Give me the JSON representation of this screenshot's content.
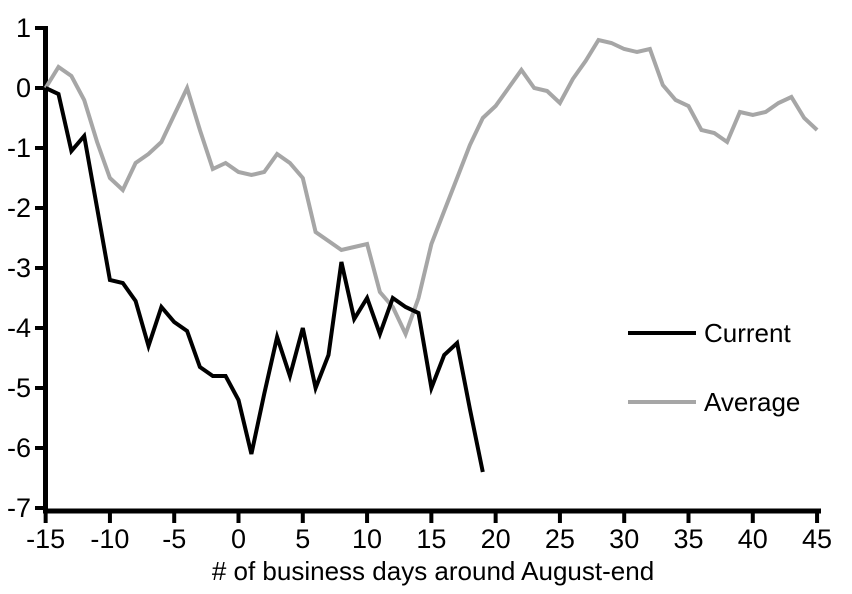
{
  "chart_data": {
    "type": "line",
    "title": "",
    "xlabel": "# of business days around August-end",
    "ylabel": "",
    "xlim": [
      -15,
      45
    ],
    "ylim": [
      -7,
      1
    ],
    "x_ticks": [
      -15,
      -10,
      -5,
      0,
      5,
      10,
      15,
      20,
      25,
      30,
      35,
      40,
      45
    ],
    "y_ticks": [
      1,
      0,
      -1,
      -2,
      -3,
      -4,
      -5,
      -6,
      -7
    ],
    "grid": false,
    "legend_position": "right-middle",
    "series": [
      {
        "name": "Current",
        "color": "#000000",
        "x": [
          -15,
          -14,
          -13,
          -12,
          -11,
          -10,
          -9,
          -8,
          -7,
          -6,
          -5,
          -4,
          -3,
          -2,
          -1,
          0,
          1,
          2,
          3,
          4,
          5,
          6,
          7,
          8,
          9,
          10,
          11,
          12,
          13,
          14,
          15,
          16,
          17,
          18,
          19
        ],
        "values": [
          0,
          -0.1,
          -1.05,
          -0.8,
          -2.0,
          -3.2,
          -3.25,
          -3.55,
          -4.3,
          -3.65,
          -3.9,
          -4.05,
          -4.65,
          -4.8,
          -4.8,
          -5.2,
          -6.1,
          -5.1,
          -4.15,
          -4.8,
          -4.0,
          -5.0,
          -4.45,
          -2.9,
          -3.85,
          -3.5,
          -4.1,
          -3.5,
          -3.65,
          -3.75,
          -5.0,
          -4.45,
          -4.25,
          -5.35,
          -6.4
        ]
      },
      {
        "name": "Average",
        "color": "#a6a6a6",
        "x": [
          -15,
          -14,
          -13,
          -12,
          -11,
          -10,
          -9,
          -8,
          -7,
          -6,
          -5,
          -4,
          -3,
          -2,
          -1,
          0,
          1,
          2,
          3,
          4,
          5,
          6,
          7,
          8,
          9,
          10,
          11,
          12,
          13,
          14,
          15,
          16,
          17,
          18,
          19,
          20,
          21,
          22,
          23,
          24,
          25,
          26,
          27,
          28,
          29,
          30,
          31,
          32,
          33,
          34,
          35,
          36,
          37,
          38,
          39,
          40,
          41,
          42,
          43,
          44,
          45
        ],
        "values": [
          0,
          0.35,
          0.2,
          -0.2,
          -0.9,
          -1.5,
          -1.7,
          -1.25,
          -1.1,
          -0.9,
          -0.45,
          0.0,
          -0.7,
          -1.35,
          -1.25,
          -1.4,
          -1.45,
          -1.4,
          -1.1,
          -1.25,
          -1.5,
          -2.4,
          -2.55,
          -2.7,
          -2.65,
          -2.6,
          -3.4,
          -3.65,
          -4.1,
          -3.5,
          -2.6,
          -2.05,
          -1.5,
          -0.95,
          -0.5,
          -0.3,
          0.0,
          0.3,
          0.0,
          -0.05,
          -0.25,
          0.15,
          0.45,
          0.8,
          0.75,
          0.65,
          0.6,
          0.65,
          0.05,
          -0.2,
          -0.3,
          -0.7,
          -0.75,
          -0.9,
          -0.4,
          -0.45,
          -0.4,
          -0.25,
          -0.15,
          -0.5,
          -0.7
        ]
      }
    ]
  },
  "colors": {
    "background": "#ffffff",
    "axis": "#000000",
    "current_line": "#000000",
    "average_line": "#a6a6a6"
  }
}
